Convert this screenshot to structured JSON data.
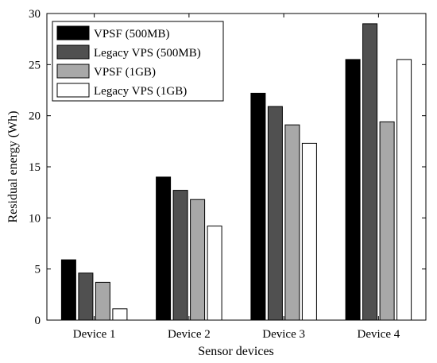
{
  "chart_data": {
    "type": "bar",
    "title": "",
    "xlabel": "Sensor devices",
    "ylabel": "Residual energy (Wh)",
    "categories": [
      "Device 1",
      "Device 2",
      "Device 3",
      "Device 4"
    ],
    "ylim": [
      0,
      30
    ],
    "yticks": [
      0,
      5,
      10,
      15,
      20,
      25,
      30
    ],
    "grid": false,
    "legend_position": "top-left",
    "series": [
      {
        "name": "VPSF (500MB)",
        "color": "#000000",
        "values": [
          5.9,
          14.0,
          22.2,
          25.5
        ]
      },
      {
        "name": "Legacy VPS (500MB)",
        "color": "#505050",
        "values": [
          4.6,
          12.7,
          20.9,
          29.0
        ]
      },
      {
        "name": "VPSF (1GB)",
        "color": "#a8a8a8",
        "values": [
          3.7,
          11.8,
          19.1,
          19.4
        ]
      },
      {
        "name": "Legacy VPS (1GB)",
        "color": "#ffffff",
        "values": [
          1.1,
          9.2,
          17.3,
          25.5
        ]
      }
    ]
  }
}
